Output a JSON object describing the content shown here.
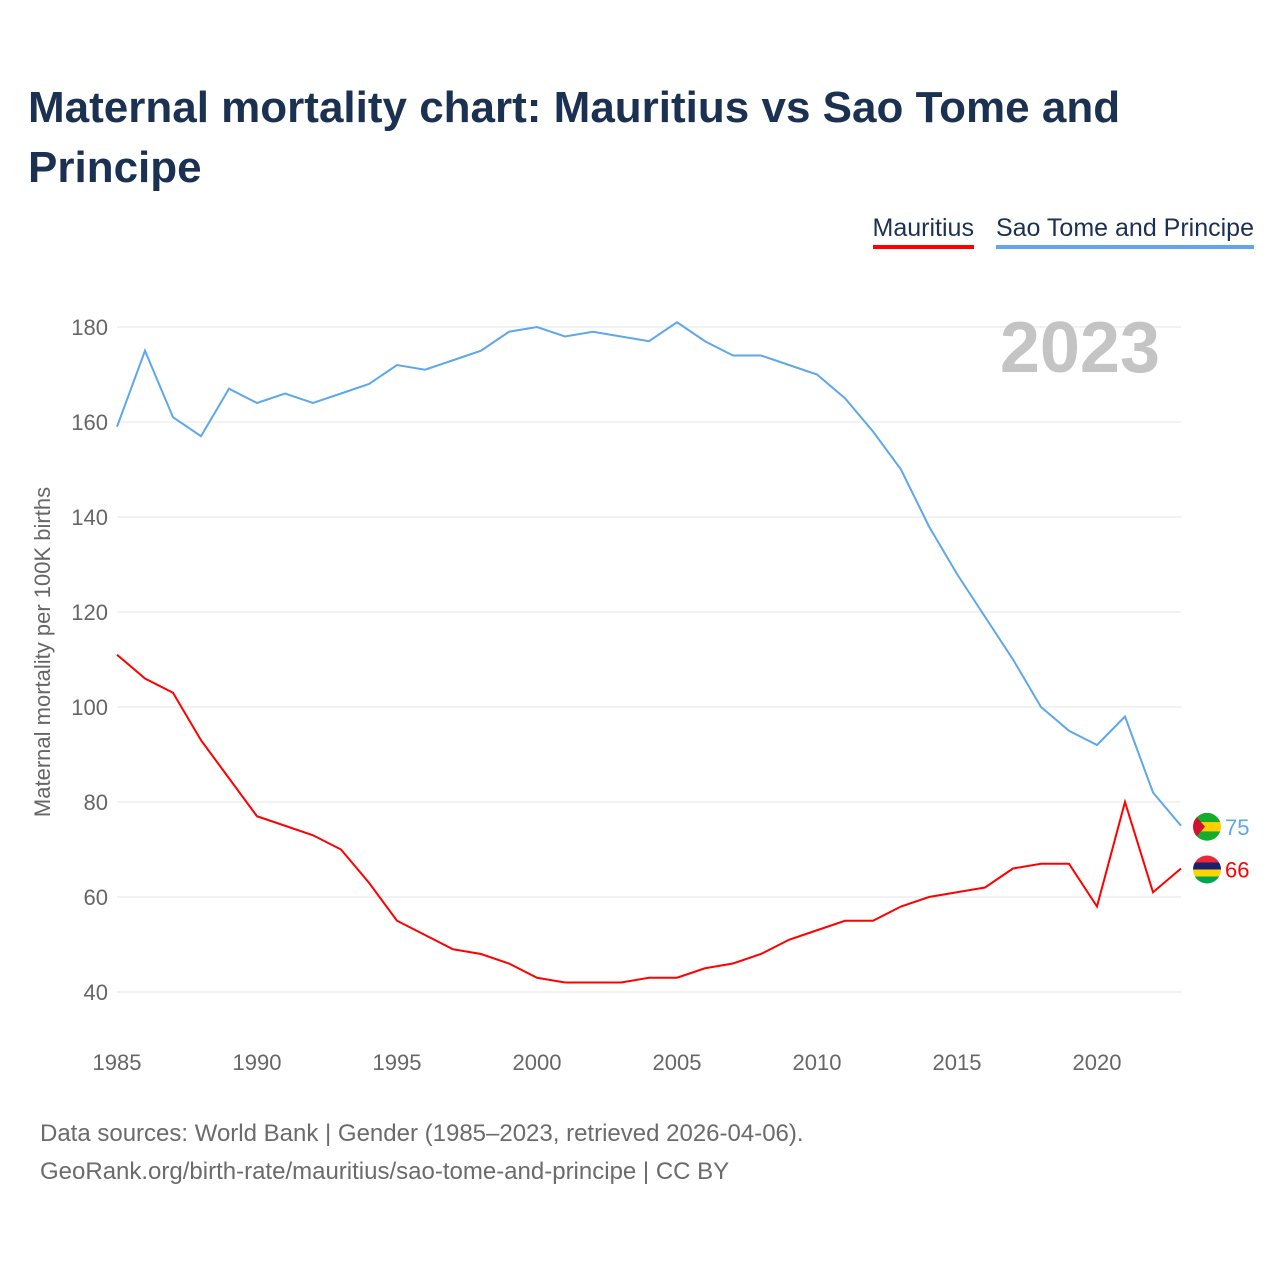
{
  "title": "Maternal mortality chart: Mauritius vs Sao Tome and Principe",
  "footer": {
    "line1": "Data sources: World Bank | Gender (1985–2023, retrieved 2026-04-06).",
    "line2": "GeoRank.org/birth-rate/mauritius/sao-tome-and-principe | CC BY"
  },
  "chart_data": {
    "type": "line",
    "title": "Maternal mortality chart: Mauritius vs Sao Tome and Principe",
    "ylabel": "Maternal mortality per 100K births",
    "xlabel": "",
    "year_label": "2023",
    "ylim": [
      30,
      190
    ],
    "xlim": [
      1985,
      2023
    ],
    "yticks": [
      40,
      60,
      80,
      100,
      120,
      140,
      160,
      180
    ],
    "xticks": [
      1985,
      1990,
      1995,
      2000,
      2005,
      2010,
      2015,
      2020
    ],
    "legend": "top-right",
    "x": [
      1985,
      1986,
      1987,
      1988,
      1989,
      1990,
      1991,
      1992,
      1993,
      1994,
      1995,
      1996,
      1997,
      1998,
      1999,
      2000,
      2001,
      2002,
      2003,
      2004,
      2005,
      2006,
      2007,
      2008,
      2009,
      2010,
      2011,
      2012,
      2013,
      2014,
      2015,
      2016,
      2017,
      2018,
      2019,
      2020,
      2021,
      2022,
      2023
    ],
    "series": [
      {
        "name": "Mauritius",
        "color": "#ff0000",
        "end_label": "66",
        "values": [
          111,
          106,
          103,
          93,
          85,
          77,
          75,
          73,
          70,
          63,
          55,
          52,
          49,
          48,
          46,
          43,
          42,
          42,
          42,
          43,
          43,
          45,
          46,
          48,
          51,
          53,
          55,
          55,
          58,
          60,
          61,
          62,
          66,
          67,
          67,
          58,
          80,
          61,
          66
        ]
      },
      {
        "name": "Sao Tome and Principe",
        "color": "#5ea8ea",
        "end_label": "75",
        "values": [
          159,
          175,
          161,
          157,
          167,
          164,
          166,
          164,
          166,
          168,
          172,
          171,
          173,
          175,
          179,
          180,
          178,
          179,
          178,
          177,
          181,
          177,
          174,
          174,
          172,
          170,
          165,
          158,
          150,
          138,
          128,
          119,
          110,
          100,
          95,
          92,
          98,
          82,
          75
        ]
      }
    ]
  }
}
